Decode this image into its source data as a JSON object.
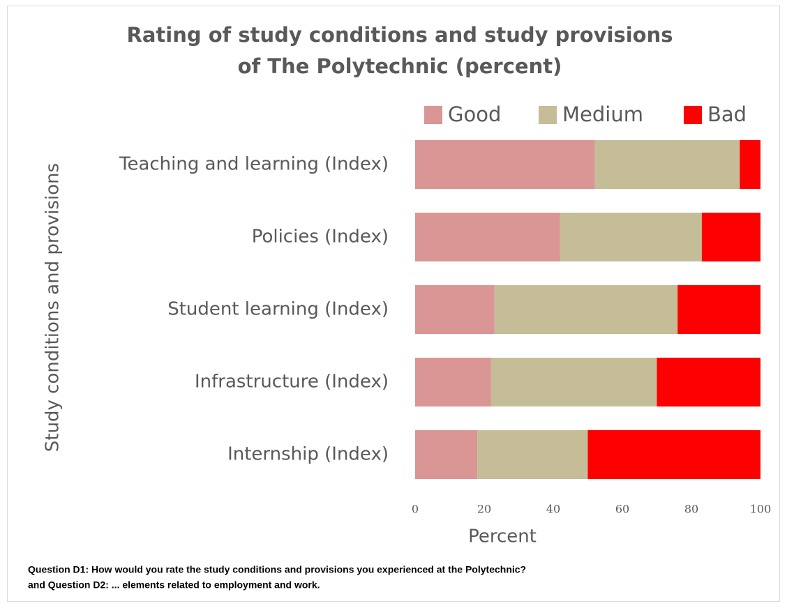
{
  "chart_data": {
    "type": "stacked_barh",
    "title": [
      "Rating of study conditions and study provisions",
      "of The Polytechnic (percent)"
    ],
    "x_label": "Percent",
    "y_label": "Study conditions and provisions",
    "categories": [
      "Teaching and learning (Index)",
      "Policies (Index)",
      "Student learning (Index)",
      "Infrastructure (Index)",
      "Internship (Index)"
    ],
    "series": [
      {
        "name": "Good",
        "color": "#d99694",
        "values": [
          52,
          42,
          23,
          22,
          18
        ]
      },
      {
        "name": "Medium",
        "color": "#c4bd97",
        "values": [
          42,
          41,
          53,
          48,
          32
        ]
      },
      {
        "name": "Bad",
        "color": "#ff0000",
        "values": [
          6,
          17,
          24,
          30,
          50
        ]
      }
    ],
    "xlim": [
      0,
      100
    ],
    "xticks": [
      0,
      20,
      40,
      60,
      80,
      100
    ],
    "legend": "top",
    "footnote": [
      "Question D1: How would you rate the study conditions and provisions you experienced at the Polytechnic?",
      "and Question D2: ... elements related to employment and work."
    ]
  }
}
